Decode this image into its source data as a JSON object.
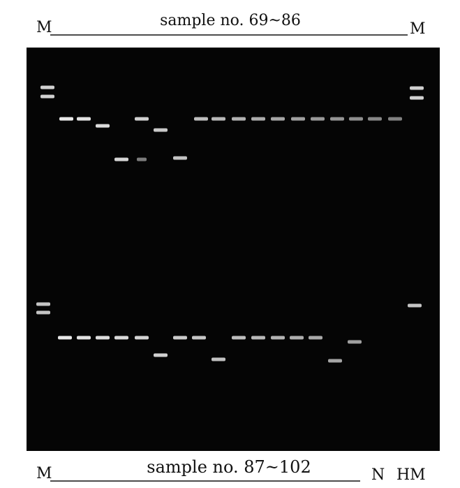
{
  "top_labels": {
    "left": "M",
    "title": "sample no. 69~86",
    "right": "M"
  },
  "bottom_labels": {
    "left": "M",
    "title": "sample no. 87~102",
    "negative": "N",
    "right": "HM"
  }
}
